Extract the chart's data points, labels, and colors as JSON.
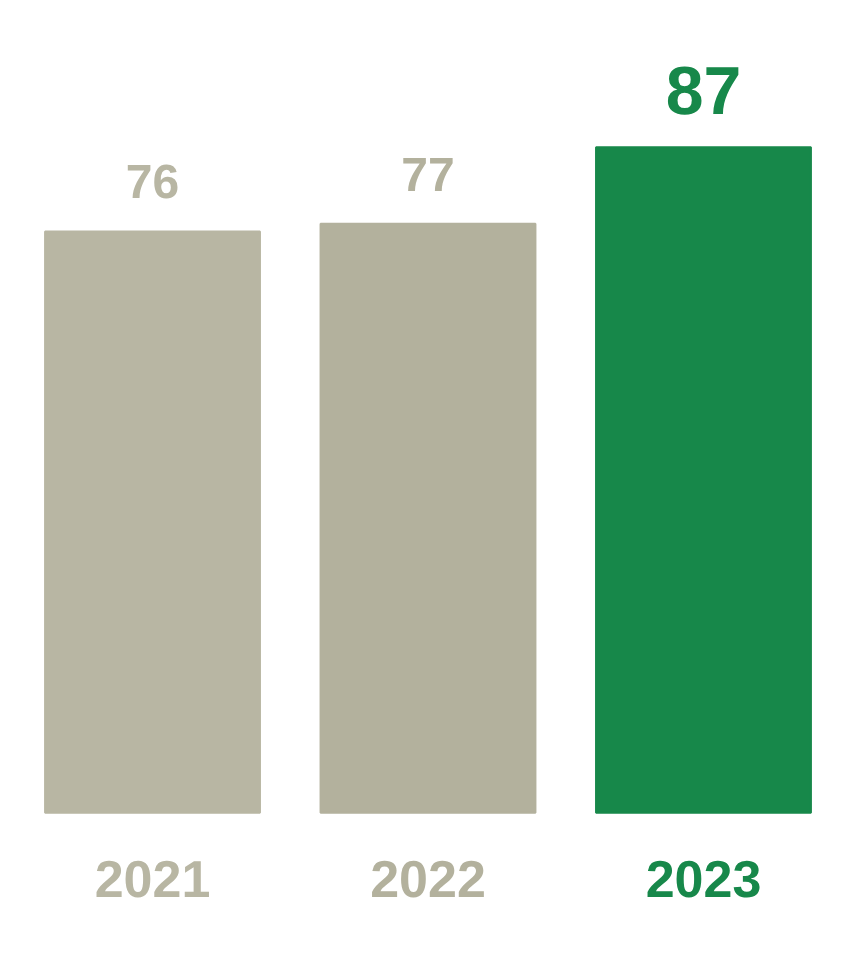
{
  "chart_data": {
    "type": "bar",
    "categories": [
      "2021",
      "2022",
      "2023"
    ],
    "values": [
      76,
      77,
      87
    ],
    "colors": [
      "#b8b6a3",
      "#b3b19d",
      "#17884a"
    ],
    "data_labels": true,
    "grid": false
  }
}
